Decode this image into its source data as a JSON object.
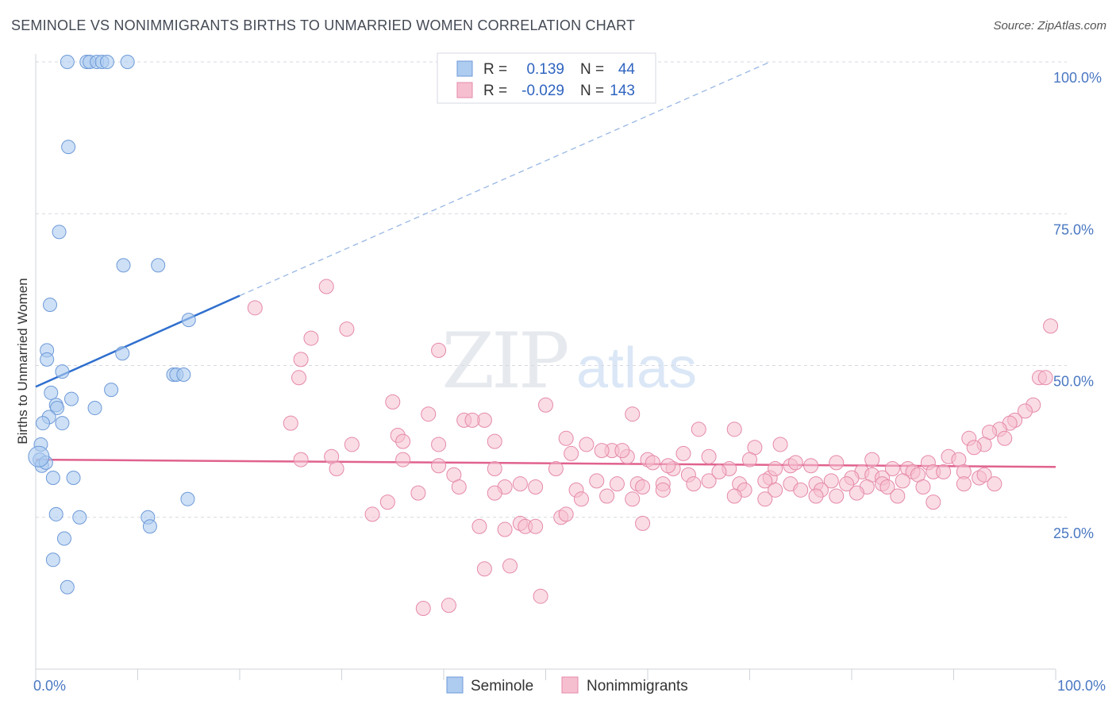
{
  "header": {
    "title": "SEMINOLE VS NONIMMIGRANTS BIRTHS TO UNMARRIED WOMEN CORRELATION CHART",
    "source": "Source: ZipAtlas.com"
  },
  "watermark": {
    "zip": "ZIP",
    "atlas": "atlas"
  },
  "colors": {
    "seminole_fill": "#aecbf0",
    "seminole_stroke": "#6d9ad8",
    "seminole_line": "#2f6fce",
    "nonimm_fill": "#f6bfd0",
    "nonimm_stroke": "#e58aa8",
    "nonimm_line": "#e0628e",
    "grid": "#d5d9e0",
    "tick_label": "#4a78c2"
  },
  "legend": {
    "rows": [
      {
        "r_label": "R =",
        "r_value": "0.139",
        "n_label": "N =",
        "n_value": "44"
      },
      {
        "r_label": "R =",
        "r_value": "-0.029",
        "n_label": "N =",
        "n_value": "143"
      }
    ]
  },
  "bottom_legend": {
    "items": [
      {
        "label": "Seminole"
      },
      {
        "label": "Nonimmigrants"
      }
    ]
  },
  "chart_data": {
    "type": "scatter",
    "title": "SEMINOLE VS NONIMMIGRANTS BIRTHS TO UNMARRIED WOMEN CORRELATION CHART",
    "xlabel": "",
    "ylabel": "Births to Unmarried Women",
    "xlim": [
      0,
      100
    ],
    "ylim": [
      0,
      100
    ],
    "x_ticks": [
      0,
      10,
      20,
      30,
      40,
      50,
      60,
      70,
      80,
      90,
      100
    ],
    "x_tick_labels": [
      {
        "value": 0,
        "label": "0.0%"
      },
      {
        "value": 100,
        "label": "100.0%"
      }
    ],
    "y_ticks": [
      25,
      50,
      75,
      100
    ],
    "y_tick_labels": [
      "25.0%",
      "50.0%",
      "75.0%",
      "100.0%"
    ],
    "grid": true,
    "legend_position": "top-center",
    "series": [
      {
        "name": "Seminole",
        "R": 0.139,
        "N": 44,
        "trend": {
          "x": [
            0,
            20
          ],
          "y": [
            46.5,
            61.5
          ],
          "extended_to": [
            72,
            100
          ]
        },
        "points": [
          [
            3.1,
            100
          ],
          [
            5,
            100
          ],
          [
            5.3,
            100
          ],
          [
            6,
            100
          ],
          [
            6.5,
            100
          ],
          [
            7,
            100
          ],
          [
            9,
            100
          ],
          [
            3.2,
            86
          ],
          [
            2.3,
            72
          ],
          [
            8.6,
            66.5
          ],
          [
            12,
            66.5
          ],
          [
            1.4,
            60
          ],
          [
            15,
            57.5
          ],
          [
            1.1,
            52.5
          ],
          [
            1.1,
            51
          ],
          [
            8.5,
            52
          ],
          [
            2.6,
            49
          ],
          [
            13.5,
            48.5
          ],
          [
            13.8,
            48.5
          ],
          [
            14.5,
            48.5
          ],
          [
            7.4,
            46
          ],
          [
            1.5,
            45.5
          ],
          [
            2,
            43.5
          ],
          [
            3.5,
            44.5
          ],
          [
            2.1,
            43
          ],
          [
            5.8,
            43
          ],
          [
            1.3,
            41.5
          ],
          [
            0.7,
            40.5
          ],
          [
            2.6,
            40.5
          ],
          [
            0.5,
            37
          ],
          [
            0.4,
            34.5
          ],
          [
            0.6,
            33.5
          ],
          [
            1,
            34
          ],
          [
            1.7,
            31.5
          ],
          [
            3.7,
            31.5
          ],
          [
            14.9,
            28
          ],
          [
            2,
            25.5
          ],
          [
            4.3,
            25
          ],
          [
            11,
            25
          ],
          [
            11.2,
            23.5
          ],
          [
            2.8,
            21.5
          ],
          [
            1.7,
            18
          ],
          [
            3.1,
            13.5
          ],
          [
            0.3,
            35
          ]
        ]
      },
      {
        "name": "Nonimmigrants",
        "R": -0.029,
        "N": 143,
        "trend": {
          "x": [
            0,
            100
          ],
          "y": [
            34.5,
            33.3
          ]
        },
        "points": [
          [
            28.5,
            63
          ],
          [
            21.5,
            59.5
          ],
          [
            30.5,
            56
          ],
          [
            27,
            54.5
          ],
          [
            39.5,
            52.5
          ],
          [
            26,
            51
          ],
          [
            25.8,
            48
          ],
          [
            99.5,
            56.5
          ],
          [
            98.4,
            48
          ],
          [
            99,
            48
          ],
          [
            35,
            44
          ],
          [
            50,
            43.5
          ],
          [
            38.5,
            42
          ],
          [
            58.5,
            42
          ],
          [
            42,
            41
          ],
          [
            44,
            41
          ],
          [
            42.8,
            41
          ],
          [
            25,
            40.5
          ],
          [
            97.8,
            43.5
          ],
          [
            97,
            42.5
          ],
          [
            96,
            41
          ],
          [
            95.5,
            40.5
          ],
          [
            94.5,
            39.5
          ],
          [
            93.5,
            39
          ],
          [
            95,
            38
          ],
          [
            65,
            39.5
          ],
          [
            68.5,
            39.5
          ],
          [
            91.5,
            38
          ],
          [
            93,
            37
          ],
          [
            92,
            36.5
          ],
          [
            89.5,
            35
          ],
          [
            35.5,
            38.5
          ],
          [
            45,
            37.5
          ],
          [
            52,
            38
          ],
          [
            36,
            37.5
          ],
          [
            39.5,
            37
          ],
          [
            54,
            37
          ],
          [
            56.5,
            36
          ],
          [
            73,
            37
          ],
          [
            70.5,
            36.5
          ],
          [
            31,
            37
          ],
          [
            29,
            35
          ],
          [
            26,
            34.5
          ],
          [
            36,
            34.5
          ],
          [
            52.5,
            35.5
          ],
          [
            58,
            35
          ],
          [
            60,
            34.5
          ],
          [
            63.5,
            35.5
          ],
          [
            57.5,
            36
          ],
          [
            66,
            35
          ],
          [
            70,
            34.5
          ],
          [
            78.5,
            34
          ],
          [
            87.5,
            34
          ],
          [
            90.5,
            34.5
          ],
          [
            29.5,
            33
          ],
          [
            39.5,
            33.5
          ],
          [
            45,
            33
          ],
          [
            51,
            33
          ],
          [
            62.5,
            33
          ],
          [
            68,
            33
          ],
          [
            74,
            33.5
          ],
          [
            76,
            33.5
          ],
          [
            81,
            32.5
          ],
          [
            84,
            33
          ],
          [
            85.5,
            33
          ],
          [
            86,
            32.5
          ],
          [
            88,
            32.5
          ],
          [
            89,
            32.5
          ],
          [
            91,
            32.5
          ],
          [
            41,
            32
          ],
          [
            64,
            32
          ],
          [
            66,
            31
          ],
          [
            67,
            32.5
          ],
          [
            72,
            31.5
          ],
          [
            80,
            31.5
          ],
          [
            82,
            32
          ],
          [
            83,
            31.5
          ],
          [
            86.5,
            32
          ],
          [
            92.5,
            31.5
          ],
          [
            93,
            32
          ],
          [
            41.5,
            30
          ],
          [
            46,
            30
          ],
          [
            47.5,
            30.5
          ],
          [
            55,
            31
          ],
          [
            57,
            30.5
          ],
          [
            59,
            30.5
          ],
          [
            59.5,
            30
          ],
          [
            61.5,
            30.5
          ],
          [
            64.5,
            30.5
          ],
          [
            69,
            30.5
          ],
          [
            71.5,
            31
          ],
          [
            74,
            30.5
          ],
          [
            76.5,
            30.5
          ],
          [
            78,
            31
          ],
          [
            79.5,
            30.5
          ],
          [
            81.5,
            30
          ],
          [
            83,
            30.5
          ],
          [
            37.5,
            29
          ],
          [
            45,
            29
          ],
          [
            49,
            30
          ],
          [
            53,
            29.5
          ],
          [
            61.5,
            29.5
          ],
          [
            69.5,
            29.5
          ],
          [
            72.5,
            29.5
          ],
          [
            75,
            29.5
          ],
          [
            77,
            29.5
          ],
          [
            80.5,
            29
          ],
          [
            83.5,
            30
          ],
          [
            87,
            30
          ],
          [
            91,
            30.5
          ],
          [
            94,
            30.5
          ],
          [
            34.5,
            27.5
          ],
          [
            53.5,
            28
          ],
          [
            56,
            28.5
          ],
          [
            58.5,
            28
          ],
          [
            68.5,
            28.5
          ],
          [
            71.5,
            28
          ],
          [
            76.5,
            28.5
          ],
          [
            78.5,
            28.5
          ],
          [
            84.5,
            28.5
          ],
          [
            88,
            27.5
          ],
          [
            33,
            25.5
          ],
          [
            51.5,
            25
          ],
          [
            52,
            25.5
          ],
          [
            43.5,
            23.5
          ],
          [
            46,
            23
          ],
          [
            47.5,
            24
          ],
          [
            48,
            23.5
          ],
          [
            49,
            23.5
          ],
          [
            59.5,
            24
          ],
          [
            44,
            16.5
          ],
          [
            46.5,
            17
          ],
          [
            49.5,
            12
          ],
          [
            38,
            10
          ],
          [
            40.5,
            10.5
          ],
          [
            55.5,
            36
          ],
          [
            60.5,
            34
          ],
          [
            62,
            33.5
          ],
          [
            85,
            31
          ],
          [
            82,
            34.5
          ],
          [
            74.5,
            34
          ],
          [
            72.5,
            33
          ]
        ]
      }
    ]
  }
}
